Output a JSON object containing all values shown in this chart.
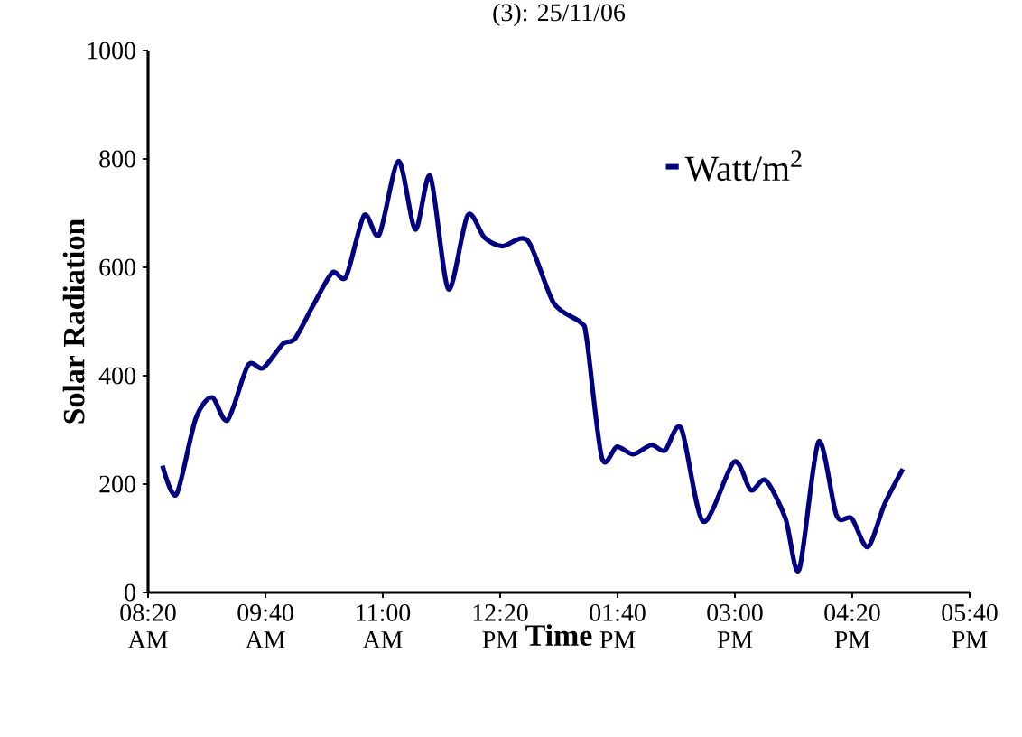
{
  "chart_data": {
    "type": "line",
    "title": "(3): 25/11/06",
    "xlabel": "Time",
    "ylabel": "Solar Radiation",
    "xlim": [
      8.333,
      17.667
    ],
    "ylim": [
      0,
      1000
    ],
    "xticks": [
      {
        "value": 8.333,
        "label": "08:20 AM"
      },
      {
        "value": 9.667,
        "label": "09:40 AM"
      },
      {
        "value": 11,
        "label": "11:00 AM"
      },
      {
        "value": 12.333,
        "label": "12:20 PM"
      },
      {
        "value": 13.667,
        "label": "01:40 PM"
      },
      {
        "value": 15,
        "label": "03:00 PM"
      },
      {
        "value": 16.333,
        "label": "04:20 PM"
      },
      {
        "value": 17.667,
        "label": "05:40 PM"
      }
    ],
    "yticks": [
      0,
      200,
      400,
      600,
      800,
      1000
    ],
    "grid": false,
    "legend": "top right",
    "marker": "none",
    "line_style": "solid",
    "series": [
      {
        "name": "Watt/m$^{2}$",
        "color": "#000080",
        "x": [
          8.497,
          8.655,
          8.873,
          9.058,
          9.236,
          9.468,
          9.64,
          9.866,
          10.0,
          10.206,
          10.425,
          10.583,
          10.788,
          10.959,
          11.178,
          11.369,
          11.54,
          11.744,
          11.964,
          12.155,
          12.36,
          12.647,
          12.942,
          13.25,
          13.318,
          13.488,
          13.66,
          13.845,
          14.05,
          14.206,
          14.39,
          14.64,
          14.99,
          15.18,
          15.35,
          15.574,
          15.73,
          15.95,
          16.155,
          16.326,
          16.51,
          16.7,
          16.908
        ],
        "values": [
          234,
          181,
          320,
          360,
          318,
          419,
          414,
          459,
          468,
          529,
          590,
          583,
          696,
          660,
          796,
          670,
          768,
          560,
          696,
          655,
          639,
          649,
          534,
          498,
          466,
          249,
          269,
          255,
          272,
          262,
          303,
          131,
          241,
          189,
          207,
          137,
          42,
          278,
          142,
          137,
          84,
          163,
          228
        ]
      }
    ]
  }
}
